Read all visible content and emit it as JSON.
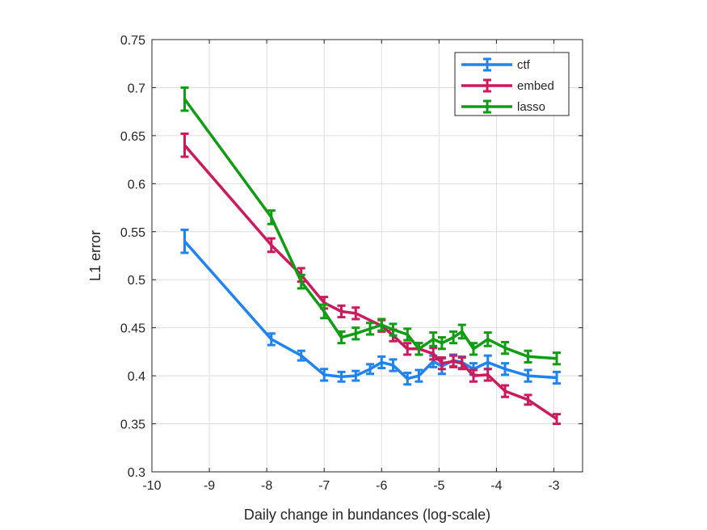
{
  "chart_data": {
    "type": "line",
    "title": "",
    "xlabel": "Daily change in bundances (log-scale)",
    "ylabel": "L1 error",
    "xlim": [
      -10,
      -2.5
    ],
    "ylim": [
      0.3,
      0.75
    ],
    "x_ticks": [
      -10,
      -9,
      -8,
      -7,
      -6,
      -5,
      -4,
      -3
    ],
    "x_tick_labels": [
      "-10",
      "-9",
      "-8",
      "-7",
      "-6",
      "-5",
      "-4",
      "-3"
    ],
    "y_ticks": [
      0.3,
      0.35,
      0.4,
      0.45,
      0.5,
      0.55,
      0.6,
      0.65,
      0.7,
      0.75
    ],
    "y_tick_labels": [
      "0.3",
      "0.35",
      "0.4",
      "0.45",
      "0.5",
      "0.55",
      "0.6",
      "0.65",
      "0.7",
      "0.75"
    ],
    "grid": true,
    "legend_position": "top-right",
    "series": [
      {
        "name": "ctf",
        "color": "#1f83f0",
        "x": [
          -9.43,
          -7.92,
          -7.4,
          -7.0,
          -6.7,
          -6.45,
          -6.2,
          -6.0,
          -5.8,
          -5.55,
          -5.35,
          -5.1,
          -4.95,
          -4.75,
          -4.6,
          -4.4,
          -4.15,
          -3.85,
          -3.45,
          -2.95
        ],
        "y": [
          0.54,
          0.438,
          0.421,
          0.401,
          0.399,
          0.4,
          0.407,
          0.414,
          0.411,
          0.397,
          0.4,
          0.415,
          0.41,
          0.416,
          0.414,
          0.407,
          0.414,
          0.407,
          0.4,
          0.398
        ],
        "err": [
          0.012,
          0.006,
          0.005,
          0.006,
          0.005,
          0.005,
          0.005,
          0.006,
          0.006,
          0.006,
          0.006,
          0.006,
          0.008,
          0.006,
          0.006,
          0.006,
          0.007,
          0.006,
          0.006,
          0.006
        ]
      },
      {
        "name": "embed",
        "color": "#cc1a5c",
        "x": [
          -9.43,
          -7.92,
          -7.4,
          -7.0,
          -6.7,
          -6.45,
          -6.0,
          -5.8,
          -5.55,
          -5.35,
          -5.1,
          -4.95,
          -4.75,
          -4.6,
          -4.4,
          -4.15,
          -3.85,
          -3.45,
          -2.95
        ],
        "y": [
          0.64,
          0.536,
          0.505,
          0.476,
          0.467,
          0.465,
          0.452,
          0.442,
          0.428,
          0.428,
          0.423,
          0.413,
          0.415,
          0.413,
          0.4,
          0.401,
          0.384,
          0.375,
          0.355
        ],
        "err": [
          0.012,
          0.007,
          0.007,
          0.006,
          0.006,
          0.006,
          0.006,
          0.006,
          0.006,
          0.006,
          0.006,
          0.006,
          0.006,
          0.006,
          0.006,
          0.006,
          0.006,
          0.005,
          0.005
        ]
      },
      {
        "name": "lasso",
        "color": "#109d13",
        "x": [
          -9.43,
          -7.92,
          -7.4,
          -7.0,
          -6.7,
          -6.45,
          -6.2,
          -6.0,
          -5.8,
          -5.55,
          -5.35,
          -5.1,
          -4.95,
          -4.75,
          -4.6,
          -4.4,
          -4.15,
          -3.85,
          -3.45,
          -2.95
        ],
        "y": [
          0.688,
          0.565,
          0.498,
          0.467,
          0.44,
          0.444,
          0.449,
          0.453,
          0.448,
          0.443,
          0.428,
          0.438,
          0.434,
          0.44,
          0.446,
          0.428,
          0.438,
          0.429,
          0.42,
          0.418
        ],
        "err": [
          0.012,
          0.007,
          0.007,
          0.007,
          0.006,
          0.006,
          0.006,
          0.006,
          0.006,
          0.006,
          0.006,
          0.007,
          0.006,
          0.006,
          0.007,
          0.006,
          0.007,
          0.006,
          0.006,
          0.006
        ]
      }
    ]
  }
}
